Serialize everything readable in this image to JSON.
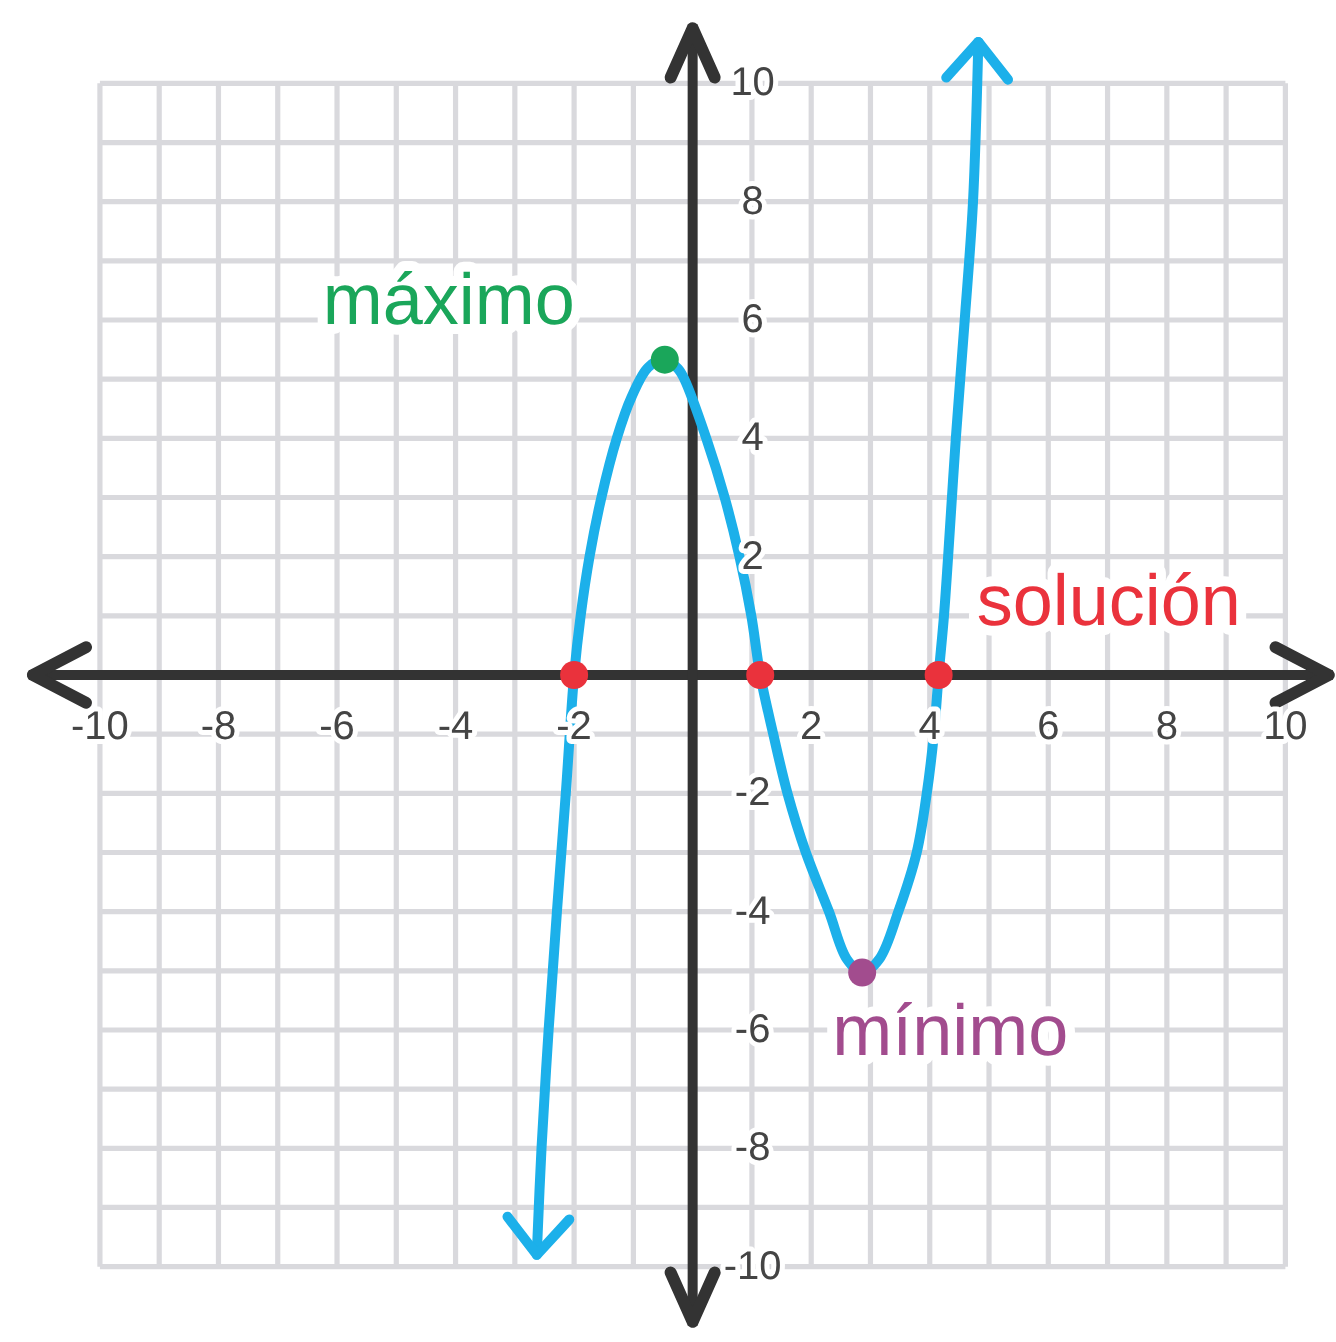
{
  "chart_data": {
    "type": "line",
    "xlim": [
      -11.2,
      10.8
    ],
    "ylim": [
      -11,
      11
    ],
    "xticks": [
      -10,
      {
        "value": -9,
        "label": null
      },
      -8,
      {
        "value": -7,
        "label": null
      },
      -6,
      {
        "value": -5,
        "label": null
      },
      -4,
      {
        "value": -3,
        "label": null
      },
      -2,
      {
        "value": -1,
        "label": null
      },
      {
        "value": 0,
        "label": null
      },
      {
        "value": 1,
        "label": null
      },
      2,
      {
        "value": 3,
        "label": null
      },
      4,
      {
        "value": 5,
        "label": null
      },
      6,
      {
        "value": 7,
        "label": null
      },
      8,
      {
        "value": 9,
        "label": null
      },
      10
    ],
    "yticks": [
      -10,
      {
        "value": -9,
        "label": null
      },
      -8,
      {
        "value": -7,
        "label": null
      },
      -6,
      {
        "value": -5,
        "label": null
      },
      -4,
      {
        "value": -3,
        "label": null
      },
      -2,
      {
        "value": -1,
        "label": null
      },
      {
        "value": 0,
        "label": null
      },
      {
        "value": 1,
        "label": null
      },
      2,
      {
        "value": 3,
        "label": null
      },
      4,
      {
        "value": 5,
        "label": null
      },
      6,
      {
        "value": 7,
        "label": null
      },
      8,
      {
        "value": 9,
        "label": null
      },
      10
    ],
    "grid": true,
    "series": [
      {
        "color": "#1cb0ea",
        "x": [
          -2.63,
          -2.55,
          -2.43,
          -2.29,
          -2.14,
          -2.0,
          -1.89,
          -1.74,
          -1.54,
          -1.28,
          -1.03,
          -0.75,
          -0.47,
          -0.25,
          -0.14,
          0.23,
          0.54,
          0.79,
          0.99,
          1.14,
          1.36,
          1.6,
          1.91,
          2.3,
          2.6,
          2.86,
          3.15,
          3.47,
          3.78,
          3.95,
          4.07,
          4.15,
          4.24,
          4.31,
          4.44,
          4.59,
          4.73,
          4.82
        ],
        "values": [
          -9.8,
          -8,
          -6,
          -4,
          -2,
          0,
          1,
          2,
          3,
          4,
          4.7,
          5.2,
          5.33,
          5.18,
          5,
          4,
          3,
          2,
          1,
          0,
          -1,
          -2,
          -3,
          -4,
          -4.8,
          -5.03,
          -4.8,
          -4,
          -3,
          -2,
          -1,
          0,
          1,
          2,
          4,
          6,
          8,
          10.7
        ]
      },
      {
        "type": "scatter",
        "name": "máximo",
        "color": "#1aa65a",
        "x": [
          -0.47
        ],
        "values": [
          5.33
        ]
      },
      {
        "type": "scatter",
        "name": "solución",
        "color": "#ea323c",
        "x": [
          -2.0,
          1.14,
          4.15
        ],
        "values": [
          0,
          0,
          0
        ]
      },
      {
        "type": "scatter",
        "name": "mínimo",
        "color": "#a24c8e",
        "x": [
          2.86
        ],
        "values": [
          -5.03
        ]
      }
    ]
  }
}
